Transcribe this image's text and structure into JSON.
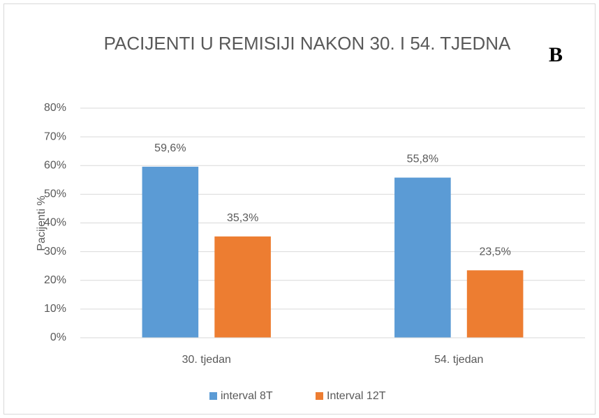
{
  "chart_data": {
    "type": "bar",
    "title": "PACIJENTI U REMISIJI NAKON 30. I 54. TJEDNA",
    "annotation": "B",
    "y_label": "Pacijenti %",
    "categories": [
      "30. tjedan",
      "54. tjedan"
    ],
    "series": [
      {
        "name": "interval 8T",
        "color": "#5b9bd5",
        "values": [
          59.6,
          55.8
        ],
        "value_labels": [
          "59,6%",
          "55,8%"
        ]
      },
      {
        "name": "Interval 12T",
        "color": "#ed7d31",
        "values": [
          35.3,
          23.5
        ],
        "value_labels": [
          "35,3%",
          "23,5%"
        ]
      }
    ],
    "ylim": [
      0,
      80
    ],
    "yticks": [
      {
        "value": 0,
        "label": "0%"
      },
      {
        "value": 10,
        "label": "10%"
      },
      {
        "value": 20,
        "label": "20%"
      },
      {
        "value": 30,
        "label": "30%"
      },
      {
        "value": 40,
        "label": "40%"
      },
      {
        "value": 50,
        "label": "50%"
      },
      {
        "value": 60,
        "label": "60%"
      },
      {
        "value": 70,
        "label": "70%"
      },
      {
        "value": 80,
        "label": "80%"
      }
    ],
    "grid": true
  }
}
